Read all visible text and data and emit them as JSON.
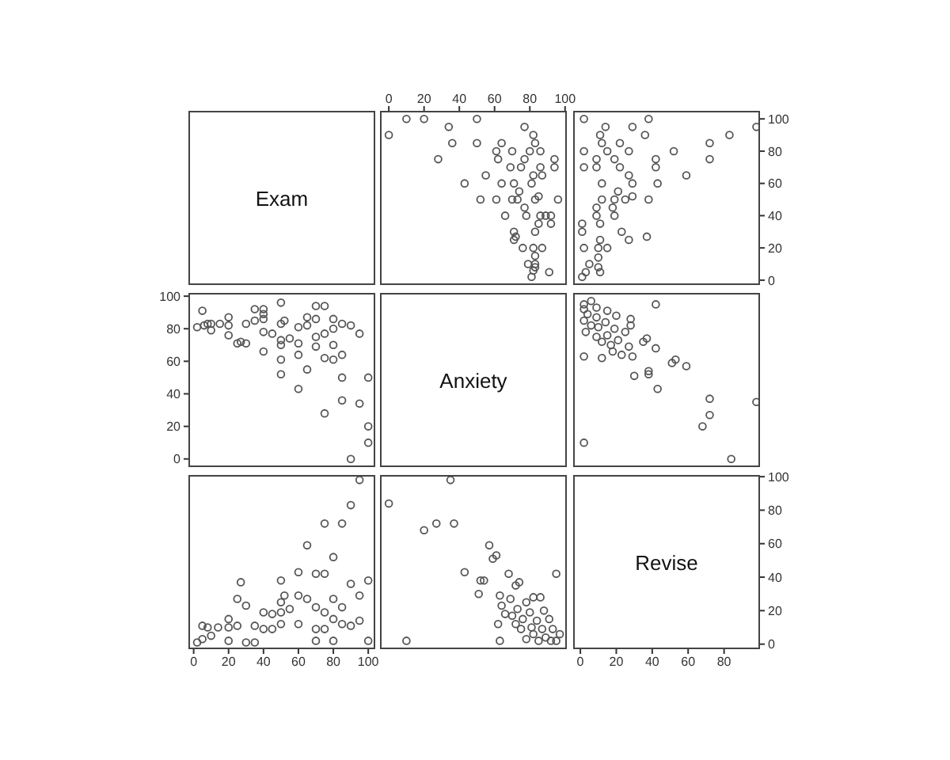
{
  "chart_data": [
    {
      "type": "other",
      "title": "Exam"
    },
    {
      "type": "scatter",
      "color": "#555555",
      "marker": "circle",
      "grid": false,
      "tick_labels": "x",
      "xlim": [
        -5,
        101
      ],
      "xticks": [
        0,
        20,
        40,
        60,
        80,
        100
      ],
      "ylim": [
        -3,
        105
      ],
      "x": [
        91,
        81,
        82,
        83,
        83,
        79,
        83,
        87,
        82,
        76,
        71,
        72,
        83,
        71,
        92,
        85,
        92,
        89,
        86,
        78,
        66,
        77,
        96,
        83,
        73,
        70,
        61,
        52,
        85,
        74,
        81,
        71,
        64,
        43,
        87,
        82,
        55,
        94,
        86,
        75,
        69,
        94,
        77,
        62,
        28,
        86,
        80,
        70,
        61,
        83,
        64,
        50,
        36,
        82,
        0,
        77,
        34,
        50,
        20,
        10
      ],
      "values": [
        5,
        2,
        6,
        8,
        10,
        10,
        15,
        20,
        20,
        20,
        25,
        27,
        30,
        30,
        35,
        35,
        40,
        40,
        40,
        40,
        40,
        45,
        50,
        50,
        50,
        50,
        50,
        50,
        52,
        55,
        60,
        60,
        60,
        60,
        65,
        65,
        65,
        70,
        70,
        70,
        70,
        75,
        75,
        75,
        75,
        80,
        80,
        80,
        80,
        85,
        85,
        85,
        85,
        90,
        90,
        95,
        95,
        100,
        100,
        100
      ]
    },
    {
      "type": "scatter",
      "color": "#555555",
      "marker": "circle",
      "grid": false,
      "tick_labels": "y",
      "xlim": [
        -4,
        100
      ],
      "ylim": [
        -3,
        105
      ],
      "yticks": [
        0,
        20,
        40,
        60,
        80,
        100
      ],
      "x": [
        1,
        3,
        11,
        10,
        5,
        10,
        15,
        10,
        2,
        11,
        27,
        37,
        23,
        1,
        1,
        11,
        19,
        9,
        18,
        9,
        38,
        25,
        19,
        12,
        29,
        21,
        43,
        29,
        12,
        59,
        27,
        42,
        22,
        9,
        2,
        72,
        42,
        19,
        9,
        52,
        27,
        15,
        2,
        72,
        22,
        12,
        83,
        36,
        11,
        98,
        29,
        14,
        38,
        2
      ],
      "values": [
        2,
        5,
        5,
        8,
        10,
        14,
        20,
        20,
        20,
        25,
        25,
        27,
        30,
        30,
        35,
        35,
        40,
        40,
        45,
        45,
        50,
        50,
        50,
        50,
        52,
        55,
        60,
        60,
        60,
        65,
        65,
        70,
        70,
        70,
        70,
        75,
        75,
        75,
        75,
        80,
        80,
        80,
        80,
        85,
        85,
        85,
        90,
        90,
        90,
        95,
        95,
        95,
        100,
        100
      ]
    },
    {
      "type": "scatter",
      "color": "#555555",
      "marker": "circle",
      "grid": false,
      "tick_labels": "y",
      "xlim": [
        -3,
        104
      ],
      "ylim": [
        -5,
        102
      ],
      "yticks": [
        0,
        20,
        40,
        60,
        80,
        100
      ],
      "x": [
        5,
        2,
        6,
        8,
        10,
        10,
        15,
        20,
        20,
        20,
        25,
        27,
        30,
        30,
        35,
        35,
        40,
        40,
        40,
        40,
        40,
        45,
        50,
        50,
        50,
        50,
        50,
        50,
        52,
        55,
        60,
        60,
        60,
        60,
        65,
        65,
        65,
        70,
        70,
        70,
        70,
        75,
        75,
        75,
        75,
        80,
        80,
        80,
        80,
        85,
        85,
        85,
        85,
        90,
        90,
        95,
        95,
        100,
        100,
        100
      ],
      "values": [
        91,
        81,
        82,
        83,
        83,
        79,
        83,
        87,
        82,
        76,
        71,
        72,
        83,
        71,
        92,
        85,
        92,
        89,
        86,
        78,
        66,
        77,
        96,
        83,
        73,
        70,
        61,
        52,
        85,
        74,
        81,
        71,
        64,
        43,
        87,
        82,
        55,
        94,
        86,
        75,
        69,
        94,
        77,
        62,
        28,
        86,
        80,
        70,
        61,
        83,
        64,
        50,
        36,
        82,
        0,
        77,
        34,
        50,
        20,
        10
      ]
    },
    {
      "type": "other",
      "title": "Anxiety"
    },
    {
      "type": "scatter",
      "color": "#555555",
      "marker": "circle",
      "grid": false,
      "tick_labels": false,
      "xlim": [
        -4,
        100
      ],
      "ylim": [
        -5,
        102
      ],
      "x": [
        84,
        2,
        68,
        72,
        98,
        72,
        43,
        30,
        38,
        38,
        59,
        51,
        53,
        12,
        29,
        2,
        23,
        18,
        42,
        27,
        17,
        12,
        35,
        21,
        37,
        9,
        15,
        25,
        3,
        19,
        10,
        28,
        6,
        14,
        2,
        28,
        9,
        20,
        4,
        15,
        2,
        9,
        2,
        42,
        6
      ],
      "values": [
        0,
        10,
        20,
        27,
        35,
        37,
        43,
        51,
        52,
        54,
        57,
        59,
        61,
        62,
        63,
        63,
        64,
        66,
        68,
        69,
        70,
        72,
        72,
        73,
        74,
        75,
        76,
        78,
        78,
        80,
        81,
        82,
        82,
        84,
        85,
        86,
        87,
        88,
        89,
        91,
        92,
        93,
        95,
        95,
        97
      ]
    },
    {
      "type": "scatter",
      "color": "#555555",
      "marker": "circle",
      "grid": false,
      "tick_labels": "x",
      "xlim": [
        -3,
        104
      ],
      "xticks": [
        0,
        20,
        40,
        60,
        80,
        100
      ],
      "ylim": [
        -3,
        101
      ],
      "x": [
        2,
        5,
        5,
        8,
        10,
        14,
        20,
        20,
        20,
        25,
        25,
        27,
        30,
        30,
        35,
        35,
        40,
        40,
        45,
        45,
        50,
        50,
        50,
        50,
        52,
        55,
        60,
        60,
        60,
        65,
        65,
        70,
        70,
        70,
        70,
        75,
        75,
        75,
        75,
        80,
        80,
        80,
        80,
        85,
        85,
        85,
        90,
        90,
        90,
        95,
        95,
        95,
        100,
        100
      ],
      "values": [
        1,
        3,
        11,
        10,
        5,
        10,
        15,
        10,
        2,
        11,
        27,
        37,
        23,
        1,
        1,
        11,
        19,
        9,
        18,
        9,
        38,
        25,
        19,
        12,
        29,
        21,
        43,
        29,
        12,
        59,
        27,
        42,
        22,
        9,
        2,
        72,
        42,
        19,
        9,
        52,
        27,
        15,
        2,
        72,
        22,
        12,
        83,
        36,
        11,
        98,
        29,
        14,
        38,
        2
      ]
    },
    {
      "type": "scatter",
      "color": "#555555",
      "marker": "circle",
      "grid": false,
      "tick_labels": false,
      "xlim": [
        -5,
        101
      ],
      "ylim": [
        -3,
        101
      ],
      "x": [
        0,
        10,
        20,
        27,
        35,
        37,
        43,
        51,
        52,
        54,
        57,
        59,
        61,
        62,
        63,
        63,
        64,
        66,
        68,
        69,
        70,
        72,
        72,
        73,
        74,
        75,
        76,
        78,
        78,
        80,
        81,
        82,
        82,
        84,
        85,
        86,
        87,
        88,
        89,
        91,
        92,
        93,
        95,
        95,
        97
      ],
      "values": [
        84,
        2,
        68,
        72,
        98,
        72,
        43,
        30,
        38,
        38,
        59,
        51,
        53,
        12,
        29,
        2,
        23,
        18,
        42,
        27,
        17,
        12,
        35,
        21,
        37,
        9,
        15,
        25,
        3,
        19,
        10,
        28,
        6,
        14,
        2,
        28,
        9,
        20,
        4,
        15,
        2,
        9,
        2,
        42,
        6
      ]
    },
    {
      "type": "scatter",
      "title": "Revise",
      "color": "#555555",
      "marker": "circle",
      "grid": false,
      "xlim": [
        -4,
        100
      ],
      "xticks": [
        0,
        20,
        40,
        60,
        80
      ],
      "ylim": [
        -3,
        101
      ],
      "yticks": [
        0,
        20,
        40,
        60,
        80,
        100
      ]
    }
  ]
}
